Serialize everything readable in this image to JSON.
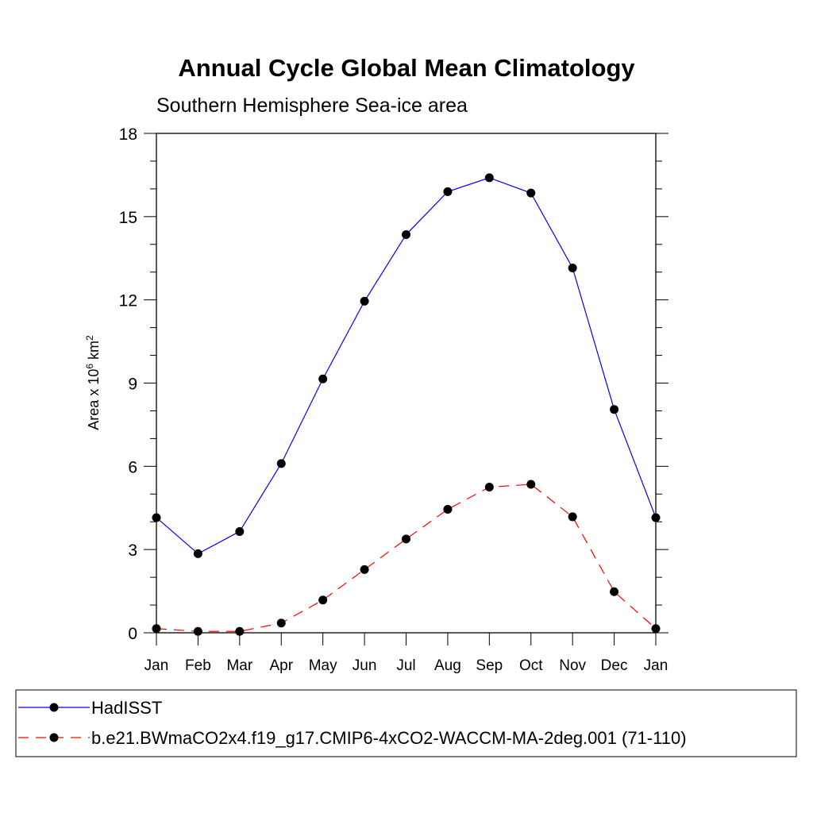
{
  "chart_data": {
    "type": "line",
    "title": "Annual Cycle Global Mean Climatology",
    "subtitle": "Southern Hemisphere Sea-ice area",
    "ylabel_main": "Area x 10",
    "ylabel_exp1": "6",
    "ylabel_unit": " km",
    "ylabel_exp2": "2",
    "ylim": [
      0,
      18
    ],
    "yticks": [
      0,
      3,
      6,
      9,
      12,
      15,
      18
    ],
    "categories": [
      "Jan",
      "Feb",
      "Mar",
      "Apr",
      "May",
      "Jun",
      "Jul",
      "Aug",
      "Sep",
      "Oct",
      "Nov",
      "Dec",
      "Jan"
    ],
    "series": [
      {
        "name": "HadISST",
        "color": "#0000ff",
        "dash": "solid",
        "values": [
          4.15,
          2.85,
          3.65,
          6.1,
          9.15,
          11.95,
          14.35,
          15.9,
          16.4,
          15.85,
          13.15,
          8.05,
          4.15
        ]
      },
      {
        "name": "b.e21.BWmaCO2x4.f19_g17.CMIP6-4xCO2-WACCM-MA-2deg.001 (71-110)",
        "color": "#ff0000",
        "dash": "dashed",
        "values": [
          0.15,
          0.05,
          0.05,
          0.35,
          1.18,
          2.28,
          3.38,
          4.45,
          5.25,
          5.35,
          4.18,
          1.48,
          0.15
        ]
      }
    ]
  }
}
